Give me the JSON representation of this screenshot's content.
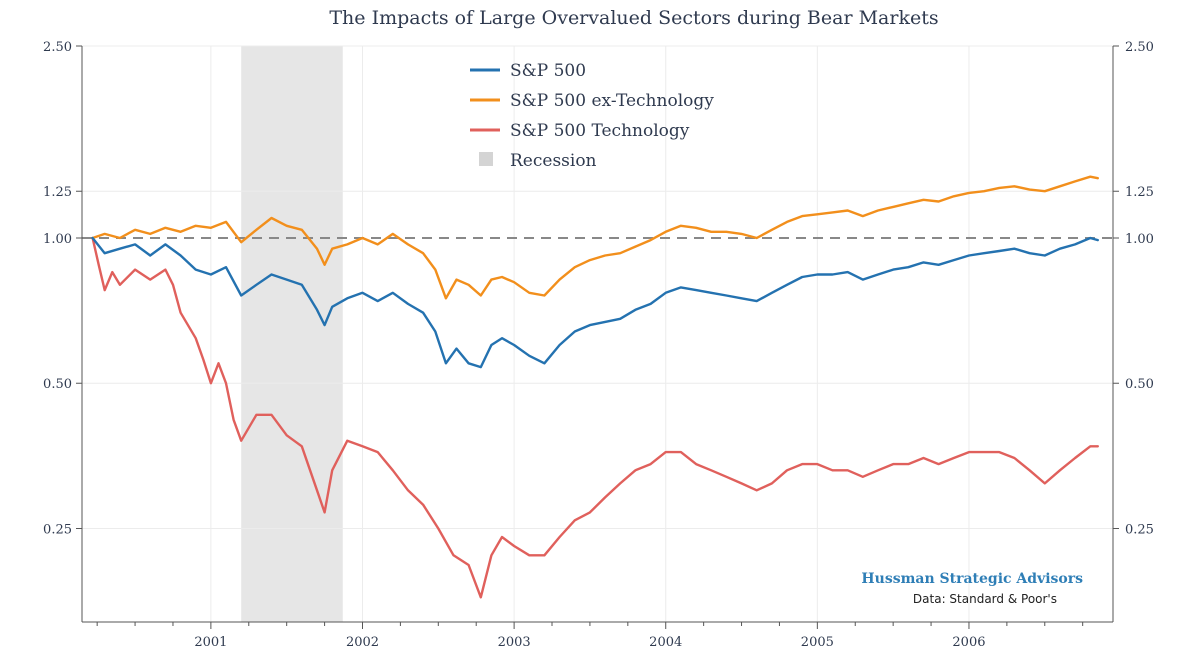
{
  "chart_data": {
    "type": "line",
    "title": "The Impacts of Large Overvalued Sectors during Bear Markets",
    "y_scale": "log",
    "ylim": [
      0.16,
      2.5
    ],
    "xlim": [
      2000.15,
      2006.95
    ],
    "yticks": [
      {
        "value": 2.5,
        "label": "2.50"
      },
      {
        "value": 1.25,
        "label": "1.25"
      },
      {
        "value": 1.0,
        "label": "1.00"
      },
      {
        "value": 0.5,
        "label": "0.50"
      },
      {
        "value": 0.25,
        "label": "0.25"
      }
    ],
    "xticks": [
      {
        "value": 2001.0,
        "label": "2001"
      },
      {
        "value": 2002.0,
        "label": "2002"
      },
      {
        "value": 2003.0,
        "label": "2003"
      },
      {
        "value": 2004.0,
        "label": "2004"
      },
      {
        "value": 2005.0,
        "label": "2005"
      },
      {
        "value": 2006.0,
        "label": "2006"
      }
    ],
    "reference_line": {
      "value": 1.0,
      "style": "dashed",
      "color": "#888888"
    },
    "recession": {
      "label": "Recession",
      "start": 2001.2,
      "end": 2001.87,
      "color": "#e6e6e6"
    },
    "grid": true,
    "legend_position": "top-center",
    "series": [
      {
        "name": "S&P 500",
        "color": "#2472b0",
        "points": [
          [
            2000.22,
            1.0
          ],
          [
            2000.3,
            0.93
          ],
          [
            2000.4,
            0.95
          ],
          [
            2000.5,
            0.97
          ],
          [
            2000.6,
            0.92
          ],
          [
            2000.7,
            0.97
          ],
          [
            2000.8,
            0.92
          ],
          [
            2000.9,
            0.86
          ],
          [
            2001.0,
            0.84
          ],
          [
            2001.1,
            0.87
          ],
          [
            2001.2,
            0.76
          ],
          [
            2001.3,
            0.8
          ],
          [
            2001.4,
            0.84
          ],
          [
            2001.5,
            0.82
          ],
          [
            2001.6,
            0.8
          ],
          [
            2001.7,
            0.71
          ],
          [
            2001.75,
            0.66
          ],
          [
            2001.8,
            0.72
          ],
          [
            2001.9,
            0.75
          ],
          [
            2002.0,
            0.77
          ],
          [
            2002.1,
            0.74
          ],
          [
            2002.2,
            0.77
          ],
          [
            2002.3,
            0.73
          ],
          [
            2002.4,
            0.7
          ],
          [
            2002.48,
            0.64
          ],
          [
            2002.55,
            0.55
          ],
          [
            2002.62,
            0.59
          ],
          [
            2002.7,
            0.55
          ],
          [
            2002.78,
            0.54
          ],
          [
            2002.85,
            0.6
          ],
          [
            2002.92,
            0.62
          ],
          [
            2003.0,
            0.6
          ],
          [
            2003.1,
            0.57
          ],
          [
            2003.2,
            0.55
          ],
          [
            2003.3,
            0.6
          ],
          [
            2003.4,
            0.64
          ],
          [
            2003.5,
            0.66
          ],
          [
            2003.6,
            0.67
          ],
          [
            2003.7,
            0.68
          ],
          [
            2003.8,
            0.71
          ],
          [
            2003.9,
            0.73
          ],
          [
            2004.0,
            0.77
          ],
          [
            2004.1,
            0.79
          ],
          [
            2004.2,
            0.78
          ],
          [
            2004.3,
            0.77
          ],
          [
            2004.4,
            0.76
          ],
          [
            2004.5,
            0.75
          ],
          [
            2004.6,
            0.74
          ],
          [
            2004.7,
            0.77
          ],
          [
            2004.8,
            0.8
          ],
          [
            2004.9,
            0.83
          ],
          [
            2005.0,
            0.84
          ],
          [
            2005.1,
            0.84
          ],
          [
            2005.2,
            0.85
          ],
          [
            2005.3,
            0.82
          ],
          [
            2005.4,
            0.84
          ],
          [
            2005.5,
            0.86
          ],
          [
            2005.6,
            0.87
          ],
          [
            2005.7,
            0.89
          ],
          [
            2005.8,
            0.88
          ],
          [
            2005.9,
            0.9
          ],
          [
            2006.0,
            0.92
          ],
          [
            2006.1,
            0.93
          ],
          [
            2006.2,
            0.94
          ],
          [
            2006.3,
            0.95
          ],
          [
            2006.4,
            0.93
          ],
          [
            2006.5,
            0.92
          ],
          [
            2006.6,
            0.95
          ],
          [
            2006.7,
            0.97
          ],
          [
            2006.8,
            1.0
          ],
          [
            2006.85,
            0.99
          ]
        ]
      },
      {
        "name": "S&P 500 ex-Technology",
        "color": "#f28f1c",
        "points": [
          [
            2000.22,
            1.0
          ],
          [
            2000.3,
            1.02
          ],
          [
            2000.4,
            1.0
          ],
          [
            2000.5,
            1.04
          ],
          [
            2000.6,
            1.02
          ],
          [
            2000.7,
            1.05
          ],
          [
            2000.8,
            1.03
          ],
          [
            2000.9,
            1.06
          ],
          [
            2001.0,
            1.05
          ],
          [
            2001.1,
            1.08
          ],
          [
            2001.2,
            0.98
          ],
          [
            2001.3,
            1.04
          ],
          [
            2001.4,
            1.1
          ],
          [
            2001.5,
            1.06
          ],
          [
            2001.6,
            1.04
          ],
          [
            2001.7,
            0.95
          ],
          [
            2001.75,
            0.88
          ],
          [
            2001.8,
            0.95
          ],
          [
            2001.9,
            0.97
          ],
          [
            2002.0,
            1.0
          ],
          [
            2002.1,
            0.97
          ],
          [
            2002.2,
            1.02
          ],
          [
            2002.3,
            0.97
          ],
          [
            2002.4,
            0.93
          ],
          [
            2002.48,
            0.86
          ],
          [
            2002.55,
            0.75
          ],
          [
            2002.62,
            0.82
          ],
          [
            2002.7,
            0.8
          ],
          [
            2002.78,
            0.76
          ],
          [
            2002.85,
            0.82
          ],
          [
            2002.92,
            0.83
          ],
          [
            2003.0,
            0.81
          ],
          [
            2003.1,
            0.77
          ],
          [
            2003.2,
            0.76
          ],
          [
            2003.3,
            0.82
          ],
          [
            2003.4,
            0.87
          ],
          [
            2003.5,
            0.9
          ],
          [
            2003.6,
            0.92
          ],
          [
            2003.7,
            0.93
          ],
          [
            2003.8,
            0.96
          ],
          [
            2003.9,
            0.99
          ],
          [
            2004.0,
            1.03
          ],
          [
            2004.1,
            1.06
          ],
          [
            2004.2,
            1.05
          ],
          [
            2004.3,
            1.03
          ],
          [
            2004.4,
            1.03
          ],
          [
            2004.5,
            1.02
          ],
          [
            2004.6,
            1.0
          ],
          [
            2004.7,
            1.04
          ],
          [
            2004.8,
            1.08
          ],
          [
            2004.9,
            1.11
          ],
          [
            2005.0,
            1.12
          ],
          [
            2005.1,
            1.13
          ],
          [
            2005.2,
            1.14
          ],
          [
            2005.3,
            1.11
          ],
          [
            2005.4,
            1.14
          ],
          [
            2005.5,
            1.16
          ],
          [
            2005.6,
            1.18
          ],
          [
            2005.7,
            1.2
          ],
          [
            2005.8,
            1.19
          ],
          [
            2005.9,
            1.22
          ],
          [
            2006.0,
            1.24
          ],
          [
            2006.1,
            1.25
          ],
          [
            2006.2,
            1.27
          ],
          [
            2006.3,
            1.28
          ],
          [
            2006.4,
            1.26
          ],
          [
            2006.5,
            1.25
          ],
          [
            2006.6,
            1.28
          ],
          [
            2006.7,
            1.31
          ],
          [
            2006.8,
            1.34
          ],
          [
            2006.85,
            1.33
          ]
        ]
      },
      {
        "name": "S&P 500 Technology",
        "color": "#e0605c",
        "points": [
          [
            2000.22,
            1.0
          ],
          [
            2000.26,
            0.88
          ],
          [
            2000.3,
            0.78
          ],
          [
            2000.35,
            0.85
          ],
          [
            2000.4,
            0.8
          ],
          [
            2000.5,
            0.86
          ],
          [
            2000.6,
            0.82
          ],
          [
            2000.7,
            0.86
          ],
          [
            2000.75,
            0.8
          ],
          [
            2000.8,
            0.7
          ],
          [
            2000.9,
            0.62
          ],
          [
            2000.95,
            0.56
          ],
          [
            2001.0,
            0.5
          ],
          [
            2001.05,
            0.55
          ],
          [
            2001.1,
            0.5
          ],
          [
            2001.15,
            0.42
          ],
          [
            2001.2,
            0.38
          ],
          [
            2001.3,
            0.43
          ],
          [
            2001.4,
            0.43
          ],
          [
            2001.5,
            0.39
          ],
          [
            2001.6,
            0.37
          ],
          [
            2001.7,
            0.3
          ],
          [
            2001.75,
            0.27
          ],
          [
            2001.8,
            0.33
          ],
          [
            2001.9,
            0.38
          ],
          [
            2002.0,
            0.37
          ],
          [
            2002.1,
            0.36
          ],
          [
            2002.2,
            0.33
          ],
          [
            2002.3,
            0.3
          ],
          [
            2002.4,
            0.28
          ],
          [
            2002.5,
            0.25
          ],
          [
            2002.6,
            0.22
          ],
          [
            2002.7,
            0.21
          ],
          [
            2002.78,
            0.18
          ],
          [
            2002.85,
            0.22
          ],
          [
            2002.92,
            0.24
          ],
          [
            2003.0,
            0.23
          ],
          [
            2003.1,
            0.22
          ],
          [
            2003.2,
            0.22
          ],
          [
            2003.3,
            0.24
          ],
          [
            2003.4,
            0.26
          ],
          [
            2003.5,
            0.27
          ],
          [
            2003.6,
            0.29
          ],
          [
            2003.7,
            0.31
          ],
          [
            2003.8,
            0.33
          ],
          [
            2003.9,
            0.34
          ],
          [
            2004.0,
            0.36
          ],
          [
            2004.1,
            0.36
          ],
          [
            2004.2,
            0.34
          ],
          [
            2004.3,
            0.33
          ],
          [
            2004.4,
            0.32
          ],
          [
            2004.5,
            0.31
          ],
          [
            2004.6,
            0.3
          ],
          [
            2004.7,
            0.31
          ],
          [
            2004.8,
            0.33
          ],
          [
            2004.9,
            0.34
          ],
          [
            2005.0,
            0.34
          ],
          [
            2005.1,
            0.33
          ],
          [
            2005.2,
            0.33
          ],
          [
            2005.3,
            0.32
          ],
          [
            2005.4,
            0.33
          ],
          [
            2005.5,
            0.34
          ],
          [
            2005.6,
            0.34
          ],
          [
            2005.7,
            0.35
          ],
          [
            2005.8,
            0.34
          ],
          [
            2005.9,
            0.35
          ],
          [
            2006.0,
            0.36
          ],
          [
            2006.1,
            0.36
          ],
          [
            2006.2,
            0.36
          ],
          [
            2006.3,
            0.35
          ],
          [
            2006.4,
            0.33
          ],
          [
            2006.5,
            0.31
          ],
          [
            2006.6,
            0.33
          ],
          [
            2006.7,
            0.35
          ],
          [
            2006.8,
            0.37
          ],
          [
            2006.85,
            0.37
          ]
        ]
      }
    ],
    "legend": [
      {
        "label": "S&P 500",
        "color": "#2472b0",
        "kind": "line"
      },
      {
        "label": "S&P 500 ex-Technology",
        "color": "#f28f1c",
        "kind": "line"
      },
      {
        "label": "S&P 500 Technology",
        "color": "#e0605c",
        "kind": "line"
      },
      {
        "label": "Recession",
        "color": "#d4d4d4",
        "kind": "box"
      }
    ]
  },
  "credits": {
    "brand": "Hussman Strategic Advisors",
    "source": "Data: Standard & Poor's"
  }
}
